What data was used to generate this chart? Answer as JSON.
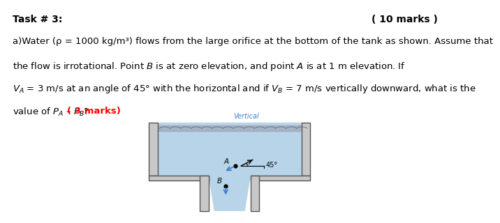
{
  "title_left": "Task # 3:",
  "title_right": "( 10 marks )",
  "line1": "a)Water (ρ = 1000 kg/m³) flows from the large orifice at the bottom of the tank as shown. Assume that",
  "line2": "the flow is irrotational. Point B is at zero elevation, and point A is at 1 m elevation. If",
  "line3": "$V_A$ = 3 m/s at an angle of 45° with the horizontal and if $V_B$ = 7 m/s vertically downward, what is the",
  "line4a": "value of $P_A$ – $P_B$? ",
  "line4b": "( 3 marks)",
  "background_color": "#ffffff",
  "water_color": "#b8d4e8",
  "tank_wall_color": "#c8c8c8",
  "tank_edge_color": "#555555",
  "wave_color": "#9090a0",
  "arrow_color": "#4080d0",
  "vertical_label_color": "#4080d0",
  "vertical_label": "Vertical",
  "angle_label": "45°",
  "point_A_label": "A",
  "point_B_label": "B",
  "title_fontsize": 10,
  "body_fontsize": 9.5
}
